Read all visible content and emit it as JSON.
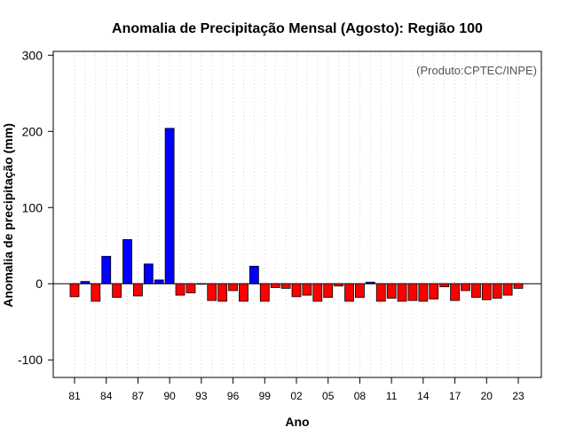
{
  "chart_data": {
    "type": "bar",
    "title": "Anomalia de Precipitação Mensal (Agosto): Região 100",
    "xlabel": "Ano",
    "ylabel": "Anomalia de precipitação (mm)",
    "credit": "(Produto:CPTEC/INPE)",
    "ylim": [
      -123,
      305
    ],
    "yticks": [
      -100,
      0,
      100,
      200,
      300
    ],
    "x": [
      1981,
      1982,
      1983,
      1984,
      1985,
      1986,
      1987,
      1988,
      1989,
      1990,
      1991,
      1992,
      1993,
      1994,
      1995,
      1996,
      1997,
      1998,
      1999,
      2000,
      2001,
      2002,
      2003,
      2004,
      2005,
      2006,
      2007,
      2008,
      2009,
      2010,
      2011,
      2012,
      2013,
      2014,
      2015,
      2016,
      2017,
      2018,
      2019,
      2020,
      2021,
      2022,
      2023
    ],
    "xtick_labels": [
      {
        "year": 1981,
        "label": "81"
      },
      {
        "year": 1984,
        "label": "84"
      },
      {
        "year": 1987,
        "label": "87"
      },
      {
        "year": 1990,
        "label": "90"
      },
      {
        "year": 1993,
        "label": "93"
      },
      {
        "year": 1996,
        "label": "96"
      },
      {
        "year": 1999,
        "label": "99"
      },
      {
        "year": 2002,
        "label": "02"
      },
      {
        "year": 2005,
        "label": "05"
      },
      {
        "year": 2008,
        "label": "08"
      },
      {
        "year": 2011,
        "label": "11"
      },
      {
        "year": 2014,
        "label": "14"
      },
      {
        "year": 2017,
        "label": "17"
      },
      {
        "year": 2020,
        "label": "20"
      },
      {
        "year": 2023,
        "label": "23"
      }
    ],
    "values": [
      -17,
      3,
      -23,
      36,
      -18,
      58,
      -16,
      26,
      5,
      204,
      -15,
      -12,
      0,
      -22,
      -23,
      -9,
      -23,
      23,
      -23,
      -5,
      -6,
      -17,
      -15,
      -23,
      -18,
      -3,
      -23,
      -18,
      2,
      -23,
      -19,
      -23,
      -22,
      -23,
      -20,
      -4,
      -22,
      -9,
      -18,
      -21,
      -19,
      -15,
      -6
    ],
    "grid": "vertical-dotted",
    "positive_color": "#0000ff",
    "negative_color": "#ff0000",
    "zero_line": true
  }
}
